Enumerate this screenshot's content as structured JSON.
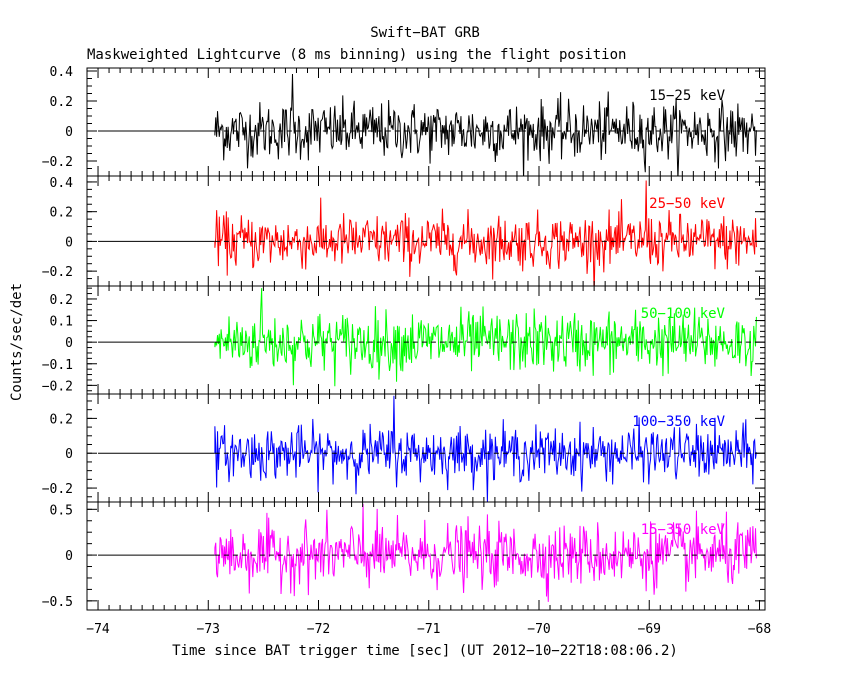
{
  "chart_data": {
    "type": "line",
    "title": "Swift−BAT GRB",
    "subtitle": "Maskweighted Lightcurve (8 ms binning) using the flight position",
    "xlabel": "Time since BAT trigger time [sec] (UT 2012−10−22T18:08:06.2)",
    "ylabel": "Counts/sec/det",
    "xlim": [
      -74.1,
      -67.95
    ],
    "x_ticks": [
      -74,
      -73,
      -72,
      -71,
      -70,
      -69,
      -68
    ],
    "x_tick_labels": [
      "−74",
      "−73",
      "−72",
      "−71",
      "−70",
      "−69",
      "−68"
    ],
    "data_start": -72.94,
    "data_end": -68.02,
    "bin_width_s": 0.008,
    "panels": [
      {
        "band": "15−25 keV",
        "color": "#000000",
        "ylim": [
          -0.3,
          0.42
        ],
        "y_ticks": [
          -0.2,
          0,
          0.2,
          0.4
        ],
        "y_tick_labels": [
          "−0.2",
          "0",
          "0.2",
          "0.4"
        ],
        "noise_sigma": 0.095,
        "peak_value": 0.38,
        "peak_time": -72.24
      },
      {
        "band": "25−50 keV",
        "color": "#ff0000",
        "ylim": [
          -0.3,
          0.44
        ],
        "y_ticks": [
          -0.2,
          0,
          0.2,
          0.4
        ],
        "y_tick_labels": [
          "−0.2",
          "0",
          "0.2",
          "0.4"
        ],
        "noise_sigma": 0.09,
        "peak_value": 0.41,
        "peak_time": -69.03
      },
      {
        "band": "50−100 keV",
        "color": "#00ff00",
        "ylim": [
          -0.24,
          0.26
        ],
        "y_ticks": [
          -0.2,
          -0.1,
          0,
          0.1,
          0.2
        ],
        "y_tick_labels": [
          "−0.2",
          "−0.1",
          "0",
          "0.1",
          "0.2"
        ],
        "noise_sigma": 0.07,
        "peak_value": 0.25,
        "peak_time": -72.52
      },
      {
        "band": "100−350 keV",
        "color": "#0000ff",
        "ylim": [
          -0.28,
          0.34
        ],
        "y_ticks": [
          -0.2,
          0,
          0.2
        ],
        "y_tick_labels": [
          "−0.2",
          "0",
          "0.2"
        ],
        "noise_sigma": 0.075,
        "peak_value": 0.33,
        "peak_time": -71.32
      },
      {
        "band": "15−350 keV",
        "color": "#ff00ff",
        "ylim": [
          -0.6,
          0.58
        ],
        "y_ticks": [
          -0.5,
          0,
          0.5
        ],
        "y_tick_labels": [
          "−0.5",
          "0",
          "0.5"
        ],
        "noise_sigma": 0.17,
        "peak_value": 0.56,
        "peak_time": -71.6
      }
    ]
  }
}
